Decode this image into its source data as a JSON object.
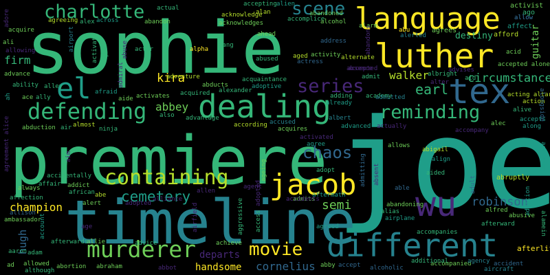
{
  "palette": {
    "yellow": "#fde725",
    "lime": "#b5de2b",
    "lgreen": "#6ece58",
    "green": "#35b779",
    "teal": "#1f9e89",
    "cyan": "#26828e",
    "blue": "#31688e",
    "indigo": "#3e4989",
    "purple": "#482878",
    "dpurple": "#440154"
  },
  "words": {
    "joe": "joe",
    "sophie": "sophie",
    "premiere": "premiere",
    "timeline": "timeline",
    "language": "language",
    "luther": "luther",
    "different": "different",
    "dealing": "dealing",
    "jacob": "jacob",
    "defending": "defending",
    "murderer": "murderer",
    "containing": "containing",
    "charlotte": "charlotte",
    "tex": "tex",
    "el": "el",
    "wu": "wu",
    "reminding": "reminding",
    "series": "series",
    "scene": "scene",
    "movie": "movie",
    "cemetery": "cemetery",
    "chaos": "chaos",
    "earl": "earl",
    "walker": "walker",
    "robinson": "robinson",
    "circumstance": "circumstance",
    "kira": "kira",
    "abbey": "abbey",
    "semi": "semi",
    "champion": "champion",
    "cornelius": "cornelius",
    "handsome": "handsome",
    "departs": "departs",
    "firm": "firm",
    "guitar": "guitar",
    "hugh": "hugh",
    "afterlife": "afterlife",
    "activist": "activist",
    "ago": "ago",
    "affect": "affect",
    "afford": "afford",
    "destiny": "destiny",
    "agrees": "agrees",
    "alarm": "alarm",
    "abu": "abu",
    "alerted": "alerted",
    "abandoned": "abandoned",
    "accepting": "accepting",
    "alien": "alien",
    "alan": "alan",
    "acknowledge": "acknowledge",
    "accomplice": "accomplice",
    "alcohol": "alcohol",
    "actual": "actual",
    "across": "across",
    "abandon": "abandon",
    "acknowledges": "acknowledges",
    "alex": "alex",
    "agreeing": "agreeing",
    "acquire": "acquire",
    "ali": "ali",
    "allowing": "allowing",
    "abuse": "abuse",
    "airport": "airport",
    "actor": "actor",
    "alpha": "alpha",
    "aang": "aang",
    "ahead": "ahead",
    "address": "address",
    "aged": "aged",
    "abused": "abused",
    "activity": "activity",
    "alternate": "alternate",
    "actress": "actress",
    "acid": "acid",
    "accepted_alone": "accepted alone",
    "advance": "advance",
    "ability": "ability",
    "ace": "ace",
    "ally": "ally",
    "alley": "alley",
    "ah": "ah",
    "abduction": "abduction",
    "air": "air",
    "almost": "almost",
    "ninja": "ninja",
    "afraid": "afraid",
    "aide": "aide",
    "activates": "activates",
    "also": "also",
    "adventure": "adventure",
    "acquired": "acquired",
    "abducts": "abducts",
    "alexander": "alexander",
    "acquaintance": "acquaintance",
    "adoptive": "adoptive",
    "advantage": "advantage",
    "according": "according",
    "accused": "accused",
    "acquires": "acquires",
    "adding": "adding",
    "already": "already",
    "albert": "albert",
    "advanced": "advanced",
    "actually": "actually",
    "accompany": "accompany",
    "academy": "academy",
    "admitted": "admitted",
    "abigail": "abigail",
    "allows": "allows",
    "align": "align",
    "aided": "aided",
    "activated": "activated",
    "agree": "agree",
    "adopt": "adopt",
    "alec": "alec",
    "alive": "alive",
    "accepts": "accepts",
    "along": "along",
    "acting_altar": "acting altar",
    "action": "action",
    "accusing": "accusing",
    "abruptly": "abruptly",
    "adult": "adult",
    "alfred": "alfred",
    "abusive": "abusive",
    "alamein": "alamein",
    "addition": "addition",
    "afterward": "afterward",
    "accompanies": "accompanies",
    "accompanied": "accompanied",
    "agency": "agency",
    "accident": "accident",
    "aircraft": "aircraft",
    "additional": "additional",
    "alcoholic": "alcoholic",
    "abby": "abby",
    "accept": "accept",
    "agreed": "agreed",
    "admits": "admits",
    "aftermath": "aftermath",
    "alias": "alias",
    "airplane": "airplane",
    "abandoning": "abandoning",
    "able": "able",
    "ageing": "ageing",
    "access": "access",
    "aggressive": "aggressive",
    "achieve": "achieve",
    "advice": "advice",
    "allie": "allie",
    "afterwards": "afterwards",
    "abraham": "abraham",
    "abortion": "abortion",
    "although": "although",
    "allowed": "allowed",
    "adam": "adam",
    "aaron": "aaron",
    "ad": "ad",
    "account": "account",
    "allison": "allison",
    "ambassador": "ambassador",
    "affection": "affection",
    "always": "always",
    "affair": "affair",
    "addict": "addict",
    "african": "african",
    "abe": "abe",
    "alert": "alert",
    "accidentally": "accidentally",
    "aim": "aim",
    "agreement_alice": "agreement alice",
    "adopted": "adopted",
    "alliance": "alliance",
    "airfield": "airfield",
    "allen": "allen",
    "agent": "agent",
    "age": "age",
    "activate": "activate",
    "admiral": "admiral",
    "accidents": "accidents",
    "advises": "advises",
    "albright": "albright",
    "aid": "aid",
    "alter": "alter",
    "admit": "admit",
    "absence": "absence",
    "admitting": "admitting",
    "absent": "absent",
    "alongside": "alongside",
    "allow": "allow",
    "accepted": "accepted",
    "al": "al",
    "abbot": "abbot",
    "abandons": "abandons",
    "adore": "adore"
  }
}
